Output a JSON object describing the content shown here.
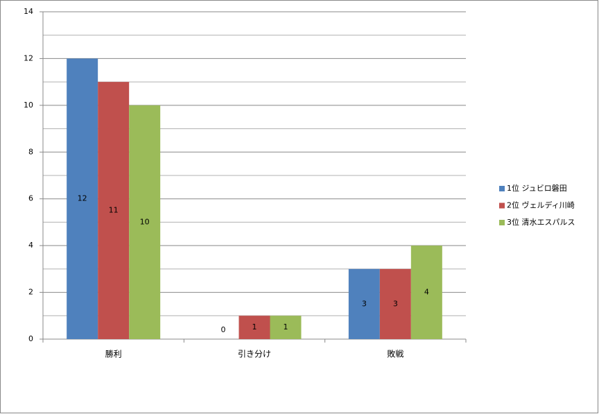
{
  "chart_data": {
    "type": "bar",
    "categories": [
      "勝利",
      "引き分け",
      "敗戦"
    ],
    "series": [
      {
        "name": "1位 ジュビロ磐田",
        "color": "#4f81bd",
        "values": [
          12,
          0,
          3
        ]
      },
      {
        "name": "2位 ヴェルディ川崎",
        "color": "#c0504d",
        "values": [
          11,
          1,
          3
        ]
      },
      {
        "name": "3位 清水エスパルス",
        "color": "#9bbb59",
        "values": [
          10,
          1,
          4
        ]
      }
    ],
    "ylim": [
      0,
      14
    ],
    "yticks": [
      0,
      2,
      4,
      6,
      8,
      10,
      12,
      14
    ],
    "minor_yticks": [
      1,
      3,
      5,
      7,
      9,
      11,
      13
    ],
    "grid": true,
    "legend": "right",
    "data_labels": true
  }
}
